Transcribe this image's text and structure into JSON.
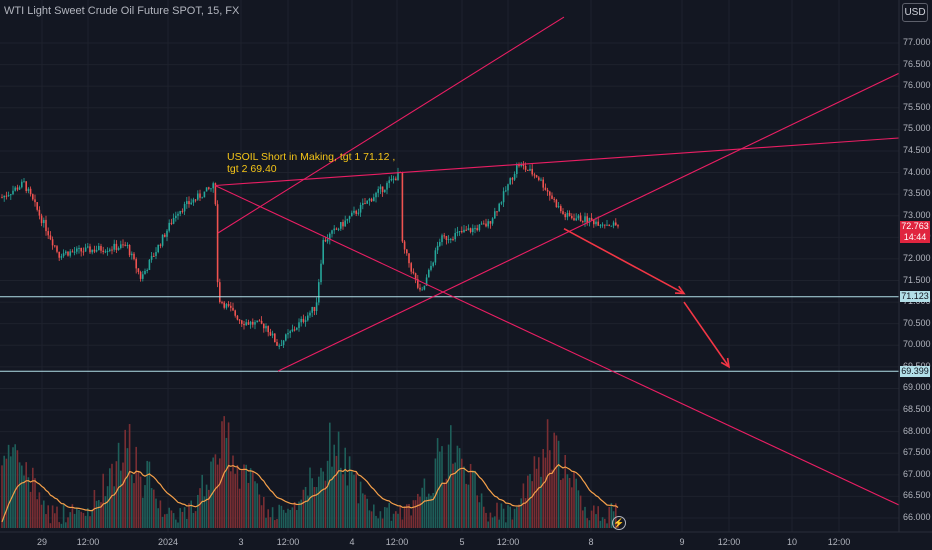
{
  "header": {
    "title": "WTI Light Sweet Crude Oil Future SPOT, 15, FX",
    "currency_button": "USD"
  },
  "annotation": {
    "line1": "USOIL Short in Making, tgt 1 71.12 ,",
    "line2": "tgt 2 69.40"
  },
  "price_tags": {
    "target1": "71.123",
    "target2": "69.399",
    "last_price": "72.763",
    "countdown": "14:44"
  },
  "replay_icon": "lightning-icon",
  "colors": {
    "background": "#131722",
    "up_candle": "#26a69a",
    "down_candle": "#ef5350",
    "trendline": "#e91e63",
    "horizontal_line": "#b2dfe8",
    "arrow": "#f23645",
    "volume_ma": "#f5a04a",
    "annotation_text": "#f5c518"
  },
  "chart_data": {
    "type": "candlestick",
    "title": "WTI Light Sweet Crude Oil Future SPOT, 15, FX",
    "x_tick_labels": [
      "29",
      "12:00",
      "2024",
      "3",
      "12:00",
      "4",
      "12:00",
      "5",
      "12:00",
      "8",
      "9",
      "12:00",
      "10",
      "12:00"
    ],
    "y_tick_labels": [
      "77.000",
      "76.500",
      "76.000",
      "75.500",
      "75.000",
      "74.500",
      "74.000",
      "73.500",
      "73.000",
      "72.500",
      "72.000",
      "71.500",
      "71.000",
      "70.500",
      "70.000",
      "69.500",
      "69.000",
      "68.500",
      "68.000",
      "67.500",
      "67.000",
      "66.500",
      "66.000"
    ],
    "ylim": [
      65.85,
      77.2
    ],
    "price_path": [
      {
        "x": "29 Dec open",
        "y": 73.4
      },
      {
        "x": "29 Dec",
        "y": 73.75
      },
      {
        "x": "29 Dec late",
        "y": 72.05
      },
      {
        "x": "29 Dec 12:00",
        "y": 72.1
      },
      {
        "x": "2 Jan early",
        "y": 72.3
      },
      {
        "x": "2 Jan",
        "y": 71.55
      },
      {
        "x": "2 Jan late",
        "y": 73.1
      },
      {
        "x": "2 Jan close",
        "y": 73.7
      },
      {
        "x": "3 Jan open",
        "y": 71.1
      },
      {
        "x": "3 Jan",
        "y": 70.55
      },
      {
        "x": "3 Jan 12:00",
        "y": 70.45
      },
      {
        "x": "3 Jan late",
        "y": 69.99
      },
      {
        "x": "3 Jan close",
        "y": 70.9
      },
      {
        "x": "4 Jan open",
        "y": 72.4
      },
      {
        "x": "4 Jan",
        "y": 72.9
      },
      {
        "x": "4 Jan 12:00",
        "y": 73.4
      },
      {
        "x": "4 Jan high",
        "y": 74.0
      },
      {
        "x": "4 Jan late",
        "y": 73.55
      },
      {
        "x": "4 Jan close",
        "y": 71.15
      },
      {
        "x": "5 Jan open",
        "y": 72.45
      },
      {
        "x": "5 Jan 12:00",
        "y": 72.8
      },
      {
        "x": "5 Jan late",
        "y": 73.3
      },
      {
        "x": "5 Jan high",
        "y": 74.2
      },
      {
        "x": "5 Jan close",
        "y": 73.9
      },
      {
        "x": "8 Jan",
        "y": 73.0
      },
      {
        "x": "8 Jan last",
        "y": 72.763
      }
    ],
    "horizontal_levels": [
      71.123,
      69.399
    ],
    "last_price": 72.763,
    "volume_ma_series": [
      {
        "x": "29 Dec",
        "level": "mid"
      },
      {
        "x": "2 Jan",
        "level": "mid"
      },
      {
        "x": "3 Jan",
        "level": "high"
      },
      {
        "x": "4 Jan",
        "level": "high"
      },
      {
        "x": "5 Jan",
        "level": "high"
      },
      {
        "x": "8 Jan",
        "level": "high"
      }
    ],
    "trendlines": [
      {
        "from": {
          "x": "2 Jan close",
          "y": 73.7
        },
        "to": {
          "x": "10 Jan 12:00",
          "y": 66.3
        }
      },
      {
        "from": {
          "x": "3 Jan late",
          "y": 69.4
        },
        "to": {
          "x": "10 Jan 12:00",
          "y": 76.3
        }
      },
      {
        "from": {
          "x": "2 Jan close",
          "y": 73.7
        },
        "to": {
          "x": "10 Jan 12:00",
          "y": 74.8
        }
      },
      {
        "from": {
          "x": "3 Jan open",
          "y": 72.6
        },
        "to": {
          "x": "8 Jan",
          "y": 77.6
        }
      }
    ],
    "projection_arrows": [
      {
        "from": {
          "x": "8 Jan",
          "y": 72.7
        },
        "to": {
          "x": "9 Jan",
          "y": 71.2
        }
      },
      {
        "from": {
          "x": "9 Jan",
          "y": 71.0
        },
        "to": {
          "x": "9 Jan 12:00",
          "y": 69.5
        }
      }
    ]
  }
}
